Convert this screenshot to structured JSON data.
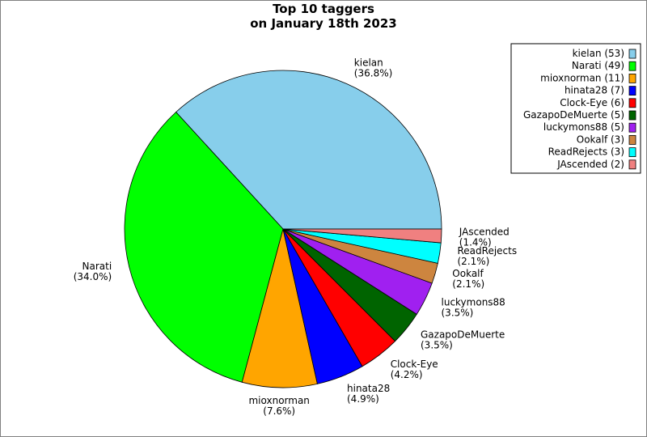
{
  "chart_data": {
    "type": "pie",
    "title": [
      "Top 10 taggers",
      "on January 18th 2023"
    ],
    "slices": [
      {
        "name": "kielan",
        "value": 53,
        "label": "kielan",
        "pct": "(36.8%)",
        "legend": "kielan (53)",
        "color": "#87ceeb"
      },
      {
        "name": "Narati",
        "value": 49,
        "label": "Narati",
        "pct": "(34.0%)",
        "legend": "Narati (49)",
        "color": "#00ff00"
      },
      {
        "name": "mioxnorman",
        "value": 11,
        "label": "mioxnorman",
        "pct": "(7.6%)",
        "legend": "mioxnorman (11)",
        "color": "#ffa500"
      },
      {
        "name": "hinata28",
        "value": 7,
        "label": "hinata28",
        "pct": "(4.9%)",
        "legend": "hinata28 (7)",
        "color": "#0000ff"
      },
      {
        "name": "Clock-Eye",
        "value": 6,
        "label": "Clock-Eye",
        "pct": "(4.2%)",
        "legend": "Clock-Eye (6)",
        "color": "#ff0000"
      },
      {
        "name": "GazapoDeMuerte",
        "value": 5,
        "label": "GazapoDeMuerte",
        "pct": "(3.5%)",
        "legend": "GazapoDeMuerte (5)",
        "color": "#006400"
      },
      {
        "name": "luckymons88",
        "value": 5,
        "label": "luckymons88",
        "pct": "(3.5%)",
        "legend": "luckymons88 (5)",
        "color": "#a020f0"
      },
      {
        "name": "Ookalf",
        "value": 3,
        "label": "Ookalf",
        "pct": "(2.1%)",
        "legend": "Ookalf (3)",
        "color": "#cd853f"
      },
      {
        "name": "ReadRejects",
        "value": 3,
        "label": "ReadRejects",
        "pct": "(2.1%)",
        "legend": "ReadRejects (3)",
        "color": "#00ffff"
      },
      {
        "name": "JAscended",
        "value": 2,
        "label": "JAscended",
        "pct": "(1.4%)",
        "legend": "JAscended (2)",
        "color": "#f08080"
      }
    ],
    "start_angle": "0 degrees (3 o'clock)",
    "direction": "counter-clockwise",
    "legend_position": "top-right"
  }
}
